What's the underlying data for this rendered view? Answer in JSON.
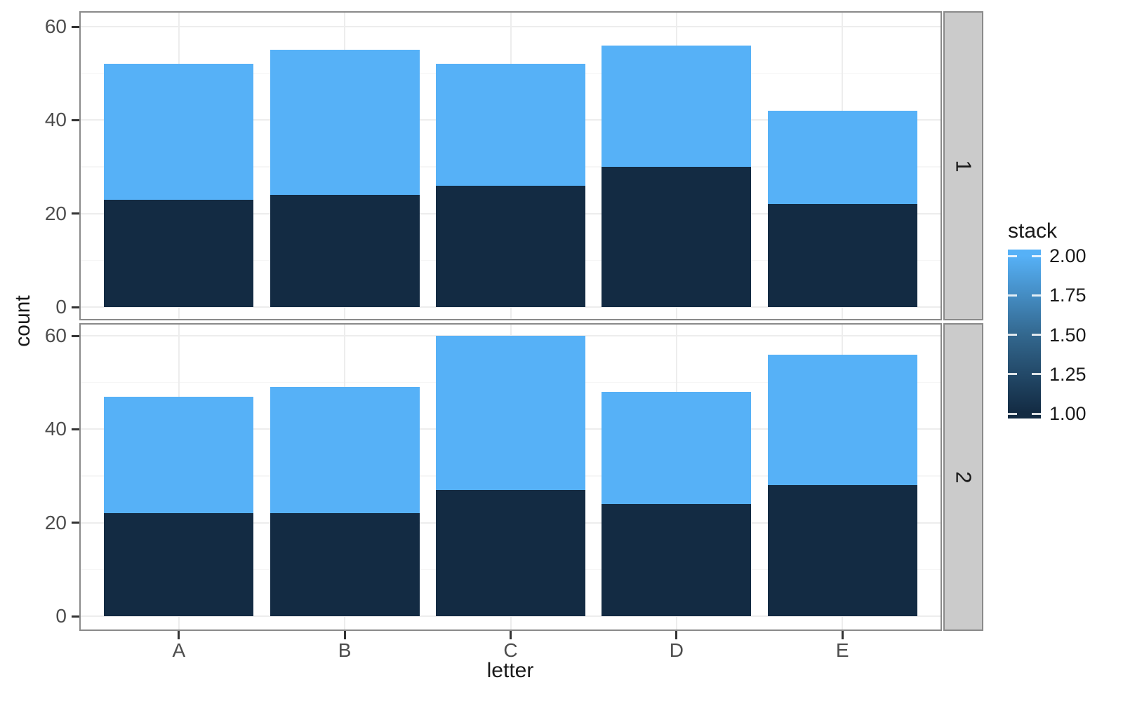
{
  "chart_data": {
    "type": "bar",
    "variant": "stacked-vertical-faceted",
    "title": "",
    "xlabel": "letter",
    "ylabel": "count",
    "categories": [
      "A",
      "B",
      "C",
      "D",
      "E"
    ],
    "facets": [
      {
        "label": "1",
        "series": [
          {
            "name": "stack 1.00",
            "color_key": "low",
            "values": [
              23,
              24,
              26,
              30,
              22
            ]
          },
          {
            "name": "stack 2.00",
            "color_key": "high",
            "values": [
              29,
              31,
              26,
              26,
              20
            ]
          }
        ],
        "totals": [
          52,
          55,
          52,
          56,
          42
        ]
      },
      {
        "label": "2",
        "series": [
          {
            "name": "stack 1.00",
            "color_key": "low",
            "values": [
              22,
              22,
              27,
              24,
              28
            ]
          },
          {
            "name": "stack 2.00",
            "color_key": "high",
            "values": [
              25,
              27,
              33,
              24,
              28
            ]
          }
        ],
        "totals": [
          47,
          49,
          60,
          48,
          56
        ]
      }
    ],
    "y_axis": {
      "ticks": [
        0,
        20,
        40,
        60
      ],
      "minor": [
        10,
        30,
        50
      ],
      "lim": [
        -3,
        63
      ]
    },
    "legend": {
      "title": "stack",
      "position": "right",
      "labels": [
        "2.00",
        "1.75",
        "1.50",
        "1.25",
        "1.00"
      ],
      "gradient_high": "#56B1F7",
      "gradient_mid": "#33688F",
      "gradient_low": "#132B43"
    },
    "colors": {
      "low": "#132B43",
      "high": "#56B1F7"
    },
    "grid": "on"
  },
  "theme": {
    "background": "#FFFFFF",
    "panel_border": "#8A8A8A",
    "strip_fill": "#CBCBCB",
    "grid_major": "#EDEDED",
    "grid_minor": "#F6F6F6",
    "axis_text": "#4D4D4D",
    "tick_mark": "#333333"
  }
}
